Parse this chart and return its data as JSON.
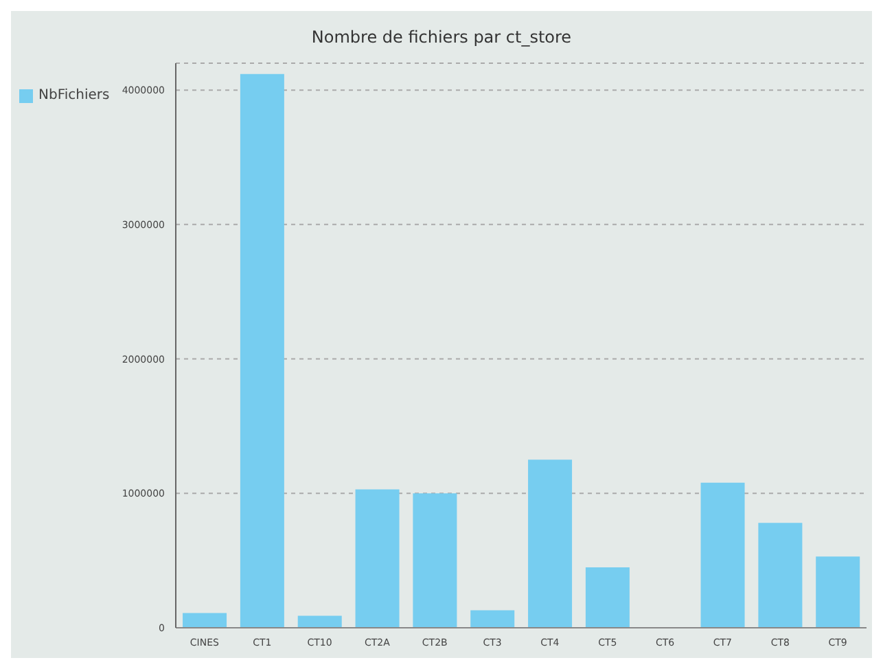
{
  "chart_data": {
    "type": "bar",
    "title": "Nombre de fichiers par ct_store",
    "categories": [
      "CINES",
      "CT1",
      "CT10",
      "CT2A",
      "CT2B",
      "CT3",
      "CT4",
      "CT5",
      "CT6",
      "CT7",
      "CT8",
      "CT9"
    ],
    "series": [
      {
        "name": "NbFichiers",
        "color": "#76cdf0",
        "values": [
          110000,
          4120000,
          90000,
          1030000,
          1000000,
          130000,
          1250000,
          450000,
          0,
          1080000,
          780000,
          530000
        ]
      }
    ],
    "ylim": [
      0,
      4200000
    ],
    "yticks": [
      0,
      1000000,
      2000000,
      3000000,
      4000000
    ],
    "grid": "y",
    "legend": "top left"
  }
}
